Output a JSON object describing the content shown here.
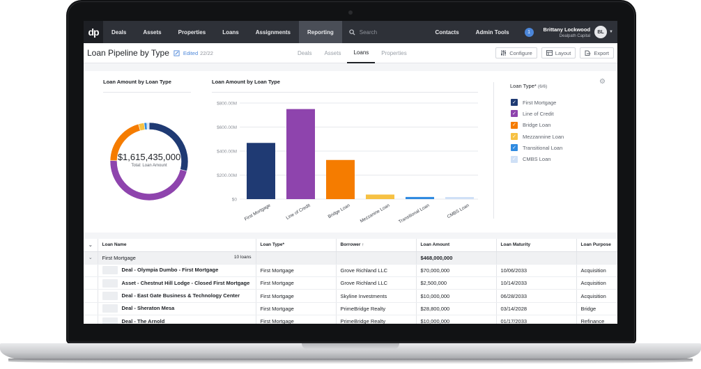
{
  "nav": {
    "logo": "dp",
    "items": [
      "Deals",
      "Assets",
      "Properties",
      "Loans",
      "Assignments",
      "Reporting"
    ],
    "active": "Reporting",
    "search_placeholder": "Search",
    "right_items": [
      "Contacts",
      "Admin Tools"
    ],
    "notification_count": "1",
    "user_name": "Brittany Lockwood",
    "user_company": "Dealpath Capital",
    "user_initials": "BL"
  },
  "subheader": {
    "title": "Loan Pipeline by Type",
    "edited_label": "Edited",
    "edited_count": "22/22",
    "tabs": [
      "Deals",
      "Assets",
      "Loans",
      "Properties"
    ],
    "active_tab": "Loans",
    "actions": {
      "configure": "Configure",
      "layout": "Layout",
      "export": "Export"
    }
  },
  "donut": {
    "title": "Loan Amount by Loan Type",
    "center_value": "$1,615,435,000",
    "center_label": "Total: Loan Amount"
  },
  "chart_data": {
    "type": "bar",
    "title": "Loan Amount by Loan Type",
    "categories": [
      "First Mortgage",
      "Line of Credit",
      "Bridge Loan",
      "Mezzanine Loan",
      "Transitional Loan",
      "CMBS Loan"
    ],
    "values": [
      468000000,
      750000000,
      326000000,
      38000000,
      18000000,
      15435000
    ],
    "colors": [
      "#1f3a73",
      "#8e44ad",
      "#f57c00",
      "#f6c143",
      "#2f8ae0",
      "#cfe0f6"
    ],
    "yticks": [
      "$800.00M",
      "$600.00M",
      "$400.00M",
      "$200.00M",
      "$0"
    ],
    "ylim": [
      0,
      800000000
    ],
    "grid": true
  },
  "legend": {
    "title": "Loan Type*",
    "count": "(6/6)",
    "items": [
      {
        "label": "First Mortgage",
        "color": "#1f3a73"
      },
      {
        "label": "Line of Credit",
        "color": "#8e44ad"
      },
      {
        "label": "Bridge Loan",
        "color": "#f57c00"
      },
      {
        "label": "Mezzannine Loan",
        "color": "#f6c143"
      },
      {
        "label": "Transitional Loan",
        "color": "#2f8ae0"
      },
      {
        "label": "CMBS Loan",
        "color": "#cfe0f6"
      }
    ]
  },
  "table": {
    "headers": [
      "Loan Name",
      "Loan Type*",
      "Borrower",
      "Loan Amount",
      "Loan Maturity",
      "Loan Purpose"
    ],
    "sort_indicator": "↑",
    "group": {
      "name": "First Mortgage",
      "count": "10 loans",
      "amount": "$468,000,000"
    },
    "rows": [
      [
        "Deal - Olympia Dumbo - First Mortgage",
        "First Mortgage",
        "Grove Richland LLC",
        "$70,000,000",
        "10/06/2033",
        "Acquisition"
      ],
      [
        "Asset - Chestnut Hill Lodge - Closed First Mortgage",
        "First Mortgage",
        "Grove Richland LLC",
        "$2,500,000",
        "10/14/2033",
        "Acquisition"
      ],
      [
        "Deal - East Gate Business & Technology Center",
        "First Mortgage",
        "Skyline Investments",
        "$10,000,000",
        "06/28/2033",
        "Acquisition"
      ],
      [
        "Deal - Sheraton Mesa",
        "First Mortgage",
        "PrimeBridge Realty",
        "$28,800,000",
        "03/14/2028",
        "Bridge"
      ],
      [
        "Deal - The Arnold",
        "First Mortgage",
        "PrimeBridge Realty",
        "$10,000,000",
        "01/17/2033",
        "Refinance"
      ]
    ]
  }
}
